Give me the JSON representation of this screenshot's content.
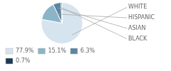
{
  "chart_data": {
    "type": "pie",
    "categories": [
      "WHITE",
      "HISPANIC",
      "ASIAN",
      "BLACK"
    ],
    "values": [
      77.9,
      15.1,
      6.3,
      0.7
    ],
    "value_labels": [
      "77.9%",
      "15.1%",
      "6.3%",
      "0.7%"
    ],
    "colors": [
      "#d6e4f0",
      "#8ab4c8",
      "#5a86a0",
      "#1e3a52"
    ],
    "legend": "bottom"
  }
}
